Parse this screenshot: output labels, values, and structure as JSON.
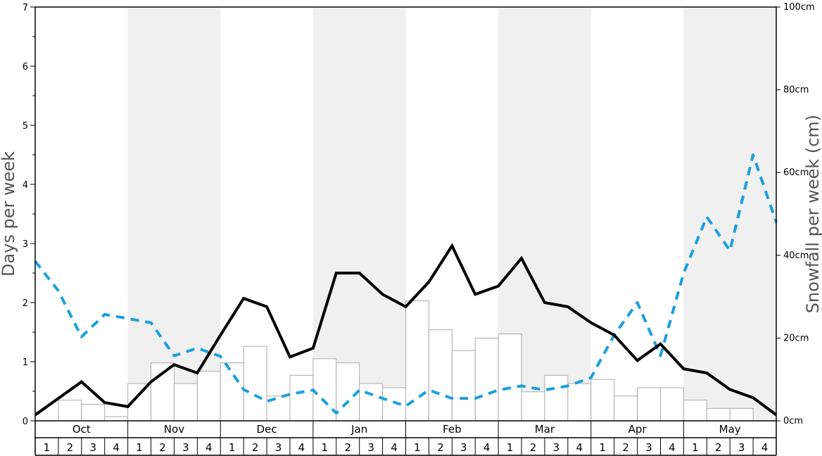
{
  "chart_data": {
    "type": "bar",
    "y_left": {
      "label": "Days per week",
      "range": [
        0,
        7
      ],
      "ticks": [
        "0",
        "1",
        "2",
        "3",
        "4",
        "5",
        "6",
        "7"
      ]
    },
    "y_right": {
      "label": "Snowfall per week (cm)",
      "range": [
        0,
        100
      ],
      "ticks": [
        "0cm",
        "20cm",
        "40cm",
        "60cm",
        "80cm",
        "100cm"
      ]
    },
    "months": [
      "Oct",
      "Nov",
      "Dec",
      "Jan",
      "Feb",
      "Mar",
      "Apr",
      "May"
    ],
    "week_labels": [
      "1",
      "2",
      "3",
      "4"
    ],
    "colors": {
      "shading": "#f0f0f0",
      "bar_fill": "#ffffff",
      "bar_stroke": "#aaaaaa",
      "black_line": "#000000",
      "blue_line": "#1a9fe0"
    },
    "bars_snowfall_cm": [
      0,
      5,
      4,
      1,
      9,
      14,
      9,
      12,
      14,
      18,
      6,
      11,
      15,
      14,
      9,
      8,
      29,
      22,
      17,
      20,
      21,
      7,
      11,
      9,
      10,
      6,
      8,
      8,
      5,
      3,
      3,
      0
    ],
    "black_line_days": [
      0.1,
      0.38,
      0.66,
      0.31,
      0.24,
      0.66,
      0.95,
      0.81,
      1.45,
      2.07,
      1.93,
      1.08,
      1.23,
      2.5,
      2.5,
      2.14,
      1.93,
      2.35,
      2.96,
      2.14,
      2.28,
      2.75,
      2.0,
      1.93,
      1.66,
      1.45,
      1.02,
      1.3,
      0.88,
      0.81,
      0.53,
      0.39,
      0.1
    ],
    "blue_dashed_days": [
      2.7,
      2.2,
      1.42,
      1.8,
      1.73,
      1.66,
      1.1,
      1.23,
      1.09,
      0.53,
      0.33,
      0.45,
      0.52,
      0.13,
      0.52,
      0.38,
      0.25,
      0.52,
      0.38,
      0.38,
      0.52,
      0.59,
      0.52,
      0.59,
      0.73,
      1.45,
      2.0,
      1.1,
      2.5,
      3.45,
      2.88,
      4.5,
      3.36
    ]
  }
}
